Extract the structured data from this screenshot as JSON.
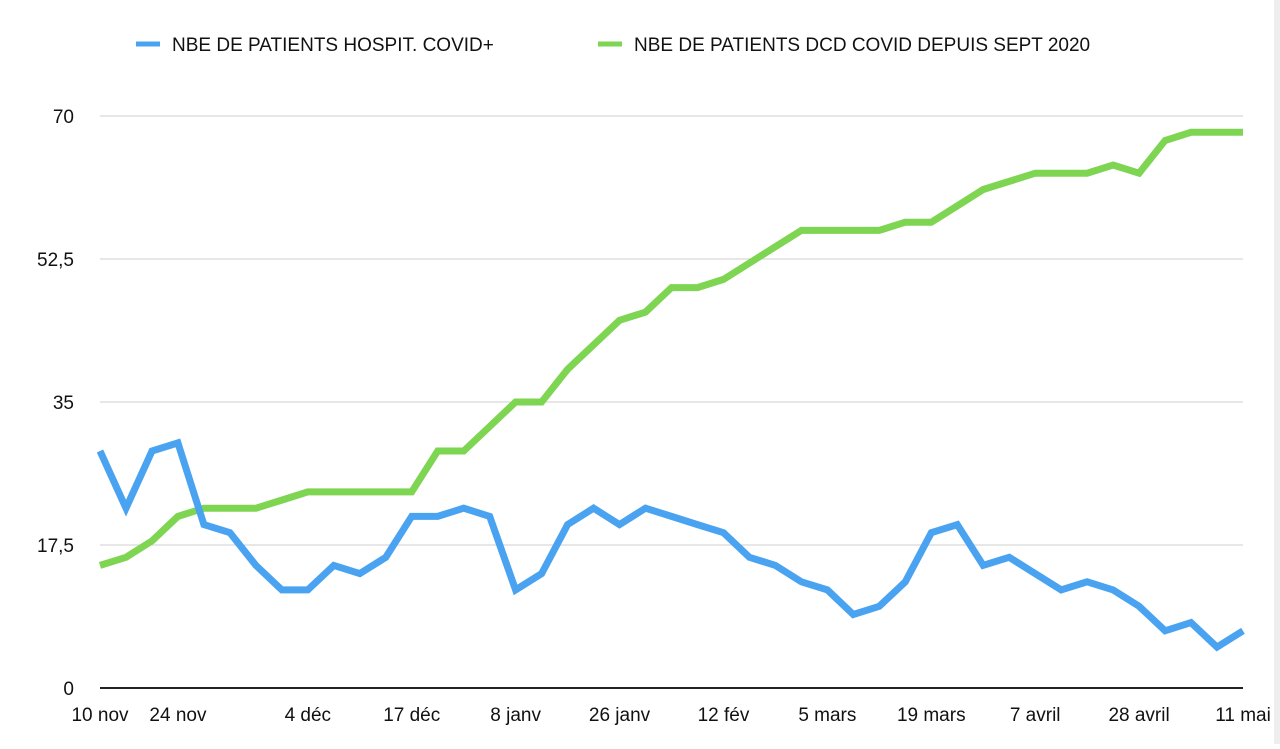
{
  "chart_data": {
    "type": "line",
    "title": "",
    "xlabel": "",
    "ylabel": "",
    "ylim": [
      0,
      70
    ],
    "y_ticks": [
      "0",
      "17,5",
      "35",
      "52,5",
      "70"
    ],
    "y_tick_values": [
      0,
      17.5,
      35,
      52.5,
      70
    ],
    "x_tick_labels": [
      "10 nov",
      "24 nov",
      "4 déc",
      "17 déc",
      "8 janv",
      "26 janv",
      "12 fév",
      "5 mars",
      "19 mars",
      "7 avril",
      "28 avril",
      "11 mai"
    ],
    "x_tick_indices": [
      0,
      3,
      8,
      12,
      16,
      20,
      24,
      28,
      32,
      36,
      40,
      44
    ],
    "point_count": 45,
    "grid": "horizontal",
    "legend_position": "top",
    "series": [
      {
        "name": "NBE DE PATIENTS HOSPIT. COVID+",
        "color": "#4aa3f0",
        "values": [
          29,
          22,
          29,
          30,
          20,
          19,
          15,
          12,
          12,
          15,
          14,
          16,
          21,
          21,
          22,
          21,
          12,
          14,
          20,
          22,
          20,
          22,
          21,
          20,
          19,
          16,
          15,
          13,
          12,
          9,
          10,
          13,
          19,
          20,
          15,
          16,
          14,
          12,
          13,
          12,
          10,
          7,
          8,
          5,
          7
        ]
      },
      {
        "name": "NBE DE PATIENTS DCD COVID DEPUIS SEPT 2020",
        "color": "#7ed552",
        "values": [
          15,
          16,
          18,
          21,
          22,
          22,
          22,
          23,
          24,
          24,
          24,
          24,
          24,
          29,
          29,
          32,
          35,
          35,
          39,
          42,
          45,
          46,
          49,
          49,
          50,
          52,
          54,
          56,
          56,
          56,
          56,
          57,
          57,
          59,
          61,
          62,
          63,
          63,
          63,
          64,
          63,
          67,
          68,
          68,
          68
        ]
      }
    ]
  }
}
